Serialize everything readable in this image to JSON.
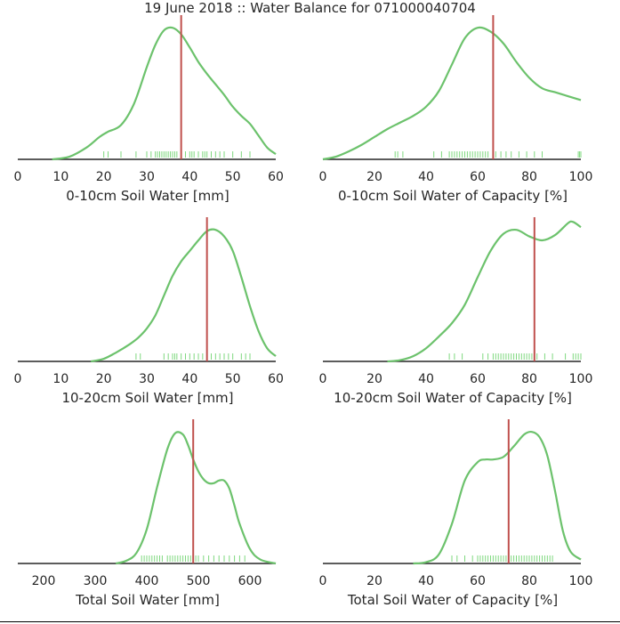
{
  "title": "19 June 2018 :: Water Balance for 071000040704",
  "colors": {
    "kde": "#6cc26c",
    "rug": "#7fd87f",
    "marker": "#c0504d",
    "axis": "#262626"
  },
  "chart_data": [
    {
      "type": "line",
      "xlabel": "0-10cm Soil Water [mm]",
      "xlim": [
        0,
        60
      ],
      "xticks": [
        0,
        10,
        20,
        30,
        40,
        50,
        60
      ],
      "marker": 38,
      "kde": {
        "x": [
          8,
          12,
          16,
          19,
          21,
          24,
          27,
          30,
          32,
          34,
          36,
          38,
          40,
          42,
          44,
          46,
          48,
          50,
          52,
          54,
          56,
          58,
          60
        ],
        "y": [
          0,
          0.02,
          0.09,
          0.17,
          0.21,
          0.26,
          0.42,
          0.7,
          0.87,
          0.98,
          1.0,
          0.95,
          0.85,
          0.74,
          0.65,
          0.57,
          0.49,
          0.4,
          0.33,
          0.27,
          0.18,
          0.09,
          0.04
        ]
      },
      "rug": [
        20,
        21,
        24,
        27.5,
        30,
        31,
        32,
        32.5,
        33,
        33.5,
        34,
        34.5,
        35,
        35.5,
        36,
        36.5,
        37,
        38,
        39,
        40,
        40.5,
        41,
        42,
        43,
        43.5,
        44,
        45,
        46,
        47,
        48,
        50,
        52,
        54
      ]
    },
    {
      "type": "line",
      "xlabel": "0-10cm Soil Water of Capacity [%]",
      "xlim": [
        0,
        100
      ],
      "xticks": [
        0,
        20,
        40,
        60,
        80,
        100
      ],
      "marker": 66,
      "kde": {
        "x": [
          0,
          5,
          10,
          15,
          20,
          25,
          30,
          35,
          40,
          45,
          50,
          55,
          60,
          65,
          70,
          75,
          80,
          85,
          90,
          95,
          100
        ],
        "y": [
          0,
          0.02,
          0.06,
          0.11,
          0.17,
          0.23,
          0.28,
          0.33,
          0.4,
          0.52,
          0.72,
          0.92,
          1.0,
          0.97,
          0.88,
          0.74,
          0.62,
          0.54,
          0.51,
          0.48,
          0.45
        ]
      },
      "rug": [
        28,
        29,
        31,
        43,
        46,
        49,
        50,
        51,
        52,
        53,
        54,
        55,
        56,
        57,
        58,
        59,
        60,
        61,
        62,
        63,
        64,
        66,
        67,
        69,
        71,
        73,
        76,
        79,
        82,
        85,
        99,
        99.5,
        100
      ]
    },
    {
      "type": "line",
      "xlabel": "10-20cm Soil Water [mm]",
      "xlim": [
        0,
        60
      ],
      "xticks": [
        0,
        10,
        20,
        30,
        40,
        50,
        60
      ],
      "marker": 44,
      "kde": {
        "x": [
          17,
          20,
          23,
          26,
          28,
          30,
          32,
          34,
          36,
          38,
          40,
          42,
          44,
          46,
          48,
          50,
          52,
          54,
          56,
          58,
          60
        ],
        "y": [
          0,
          0.02,
          0.07,
          0.13,
          0.18,
          0.25,
          0.35,
          0.5,
          0.65,
          0.76,
          0.84,
          0.92,
          0.99,
          1.0,
          0.95,
          0.84,
          0.64,
          0.42,
          0.23,
          0.1,
          0.04
        ]
      },
      "rug": [
        27.5,
        28.5,
        34,
        35,
        36,
        36.5,
        37,
        38,
        39,
        40,
        41,
        42,
        43,
        44,
        45,
        46,
        47,
        48,
        49,
        50,
        52,
        53,
        54
      ]
    },
    {
      "type": "line",
      "xlabel": "10-20cm Soil Water of Capacity [%]",
      "xlim": [
        0,
        100
      ],
      "xticks": [
        0,
        20,
        40,
        60,
        80,
        100
      ],
      "marker": 82,
      "kde": {
        "x": [
          25,
          30,
          35,
          40,
          45,
          50,
          55,
          60,
          65,
          70,
          75,
          80,
          85,
          90,
          95,
          97,
          100
        ],
        "y": [
          0,
          0.01,
          0.04,
          0.1,
          0.19,
          0.29,
          0.43,
          0.64,
          0.84,
          0.97,
          1.0,
          0.95,
          0.92,
          0.96,
          1.05,
          1.06,
          1.02
        ]
      },
      "rug": [
        49,
        51,
        54,
        62,
        64,
        66,
        67,
        68,
        69,
        70,
        71,
        72,
        73,
        74,
        75,
        76,
        77,
        78,
        79,
        80,
        81,
        83,
        86,
        89,
        94,
        97,
        98,
        99,
        100
      ]
    },
    {
      "type": "line",
      "xlabel": "Total Soil Water [mm]",
      "xlim": [
        150,
        650
      ],
      "xticks": [
        200,
        300,
        400,
        500,
        600
      ],
      "marker": 490,
      "kde": {
        "x": [
          340,
          360,
          380,
          400,
          420,
          440,
          455,
          470,
          480,
          490,
          500,
          510,
          520,
          530,
          540,
          550,
          560,
          570,
          580,
          600,
          620,
          650
        ],
        "y": [
          0,
          0.02,
          0.08,
          0.26,
          0.58,
          0.87,
          0.99,
          0.98,
          0.9,
          0.79,
          0.7,
          0.64,
          0.61,
          0.61,
          0.63,
          0.63,
          0.57,
          0.44,
          0.3,
          0.11,
          0.03,
          0
        ]
      },
      "rug": [
        390,
        395,
        400,
        405,
        410,
        415,
        420,
        425,
        430,
        440,
        445,
        450,
        455,
        460,
        465,
        470,
        475,
        480,
        485,
        490,
        495,
        500,
        510,
        520,
        530,
        540,
        550,
        560,
        570,
        580,
        590
      ]
    },
    {
      "type": "line",
      "xlabel": "Total Soil Water of Capacity [%]",
      "xlim": [
        0,
        100
      ],
      "xticks": [
        0,
        20,
        40,
        60,
        80,
        100
      ],
      "marker": 72,
      "kde": {
        "x": [
          35,
          40,
          45,
          50,
          55,
          60,
          63,
          66,
          70,
          74,
          78,
          81,
          84,
          87,
          90,
          93,
          96,
          100
        ],
        "y": [
          0,
          0.01,
          0.07,
          0.3,
          0.63,
          0.77,
          0.79,
          0.79,
          0.81,
          0.89,
          0.98,
          1.0,
          0.96,
          0.82,
          0.55,
          0.25,
          0.09,
          0.03
        ]
      },
      "rug": [
        50,
        52,
        55,
        58,
        60,
        61,
        62,
        63,
        64,
        65,
        66,
        67,
        68,
        69,
        70,
        71,
        72,
        73,
        74,
        75,
        76,
        77,
        78,
        79,
        80,
        81,
        82,
        83,
        84,
        85,
        86,
        87,
        88,
        89
      ]
    }
  ]
}
